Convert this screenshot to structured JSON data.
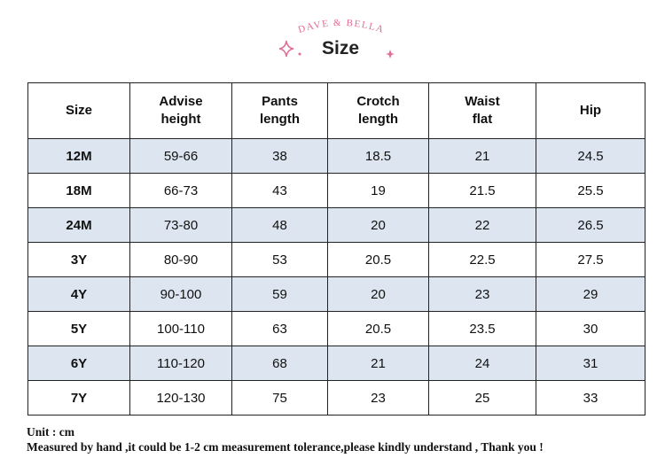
{
  "header": {
    "brand": "DAVE & BELLA",
    "title": "Size"
  },
  "table": {
    "columns": [
      "Size",
      "Advise height",
      "Pants length",
      "Crotch length",
      "Waist flat",
      "Hip"
    ],
    "rows": [
      [
        "12M",
        "59-66",
        "38",
        "18.5",
        "21",
        "24.5"
      ],
      [
        "18M",
        "66-73",
        "43",
        "19",
        "21.5",
        "25.5"
      ],
      [
        "24M",
        "73-80",
        "48",
        "20",
        "22",
        "26.5"
      ],
      [
        "3Y",
        "80-90",
        "53",
        "20.5",
        "22.5",
        "27.5"
      ],
      [
        "4Y",
        "90-100",
        "59",
        "20",
        "23",
        "29"
      ],
      [
        "5Y",
        "100-110",
        "63",
        "20.5",
        "23.5",
        "30"
      ],
      [
        "6Y",
        "110-120",
        "68",
        "21",
        "24",
        "31"
      ],
      [
        "7Y",
        "120-130",
        "75",
        "23",
        "25",
        "33"
      ]
    ]
  },
  "notes": [
    "Unit : cm",
    "Measured by hand ,it could be 1-2 cm measurement tolerance,please kindly understand , Thank you !"
  ]
}
